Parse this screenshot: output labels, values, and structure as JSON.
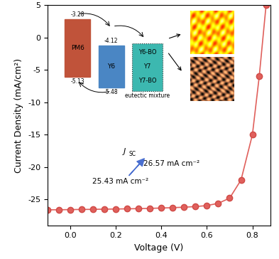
{
  "chart_data": {
    "type": "line",
    "x_label": "Voltage (V)",
    "y_label": "Current Density (mA/cm²)",
    "xlim": [
      -0.1,
      0.88
    ],
    "xticks": [
      0.0,
      0.2,
      0.4,
      0.6,
      0.8
    ],
    "ylim": [
      -29,
      5
    ],
    "yticks": [
      -25,
      -20,
      -15,
      -10,
      -5,
      0,
      5
    ],
    "series": [
      {
        "color": "#e0605c",
        "marker": "o",
        "line_style": "solid",
        "x": [
          -0.1,
          -0.05,
          0.0,
          0.05,
          0.1,
          0.15,
          0.2,
          0.25,
          0.3,
          0.35,
          0.4,
          0.45,
          0.5,
          0.55,
          0.6,
          0.65,
          0.7,
          0.75,
          0.8,
          0.83,
          0.86
        ],
        "values": [
          -26.6,
          -26.6,
          -26.57,
          -26.55,
          -26.53,
          -26.5,
          -26.48,
          -26.45,
          -26.42,
          -26.38,
          -26.33,
          -26.27,
          -26.2,
          -26.1,
          -25.95,
          -25.6,
          -24.8,
          -22.0,
          -15.0,
          -6.0,
          5.0
        ]
      }
    ],
    "annotations": {
      "high": "26.57 mA cm⁻²",
      "low": "25.43 mA cm⁻²",
      "jsc_main": "J",
      "jsc_sub": "SC"
    },
    "inset": {
      "materials": [
        {
          "name": "PM6",
          "lumo": -3.28,
          "homo": -5.13,
          "color": "#c0533a"
        },
        {
          "name": "Y6",
          "lumo": -4.12,
          "homo": -5.48,
          "color": "#4a86c4"
        }
      ],
      "mixture": {
        "labels": [
          "Y6-BO",
          "Y7",
          "Y7-BO"
        ],
        "caption": "eutectic mixture",
        "color": "#3cb8b0"
      }
    }
  }
}
